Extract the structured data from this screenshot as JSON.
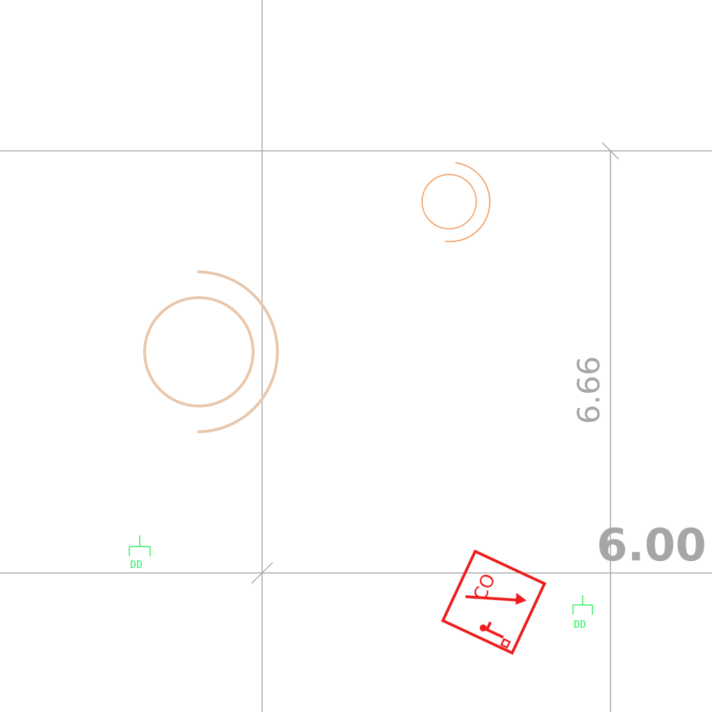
{
  "drawing": {
    "dimensions": {
      "horizontal": "6.00",
      "vertical": "6.66"
    },
    "tags": [
      {
        "label": "DD"
      },
      {
        "label": "DD"
      }
    ],
    "symbol": {
      "label": "CO"
    },
    "colors": {
      "grid_line": "#a8a8a8",
      "dimension_text": "#a6a6a6",
      "fixture_large": "#e8c6aa",
      "fixture_small": "#f2a064",
      "tag": "#33ee66",
      "symbol": "#ee1c1c"
    }
  }
}
